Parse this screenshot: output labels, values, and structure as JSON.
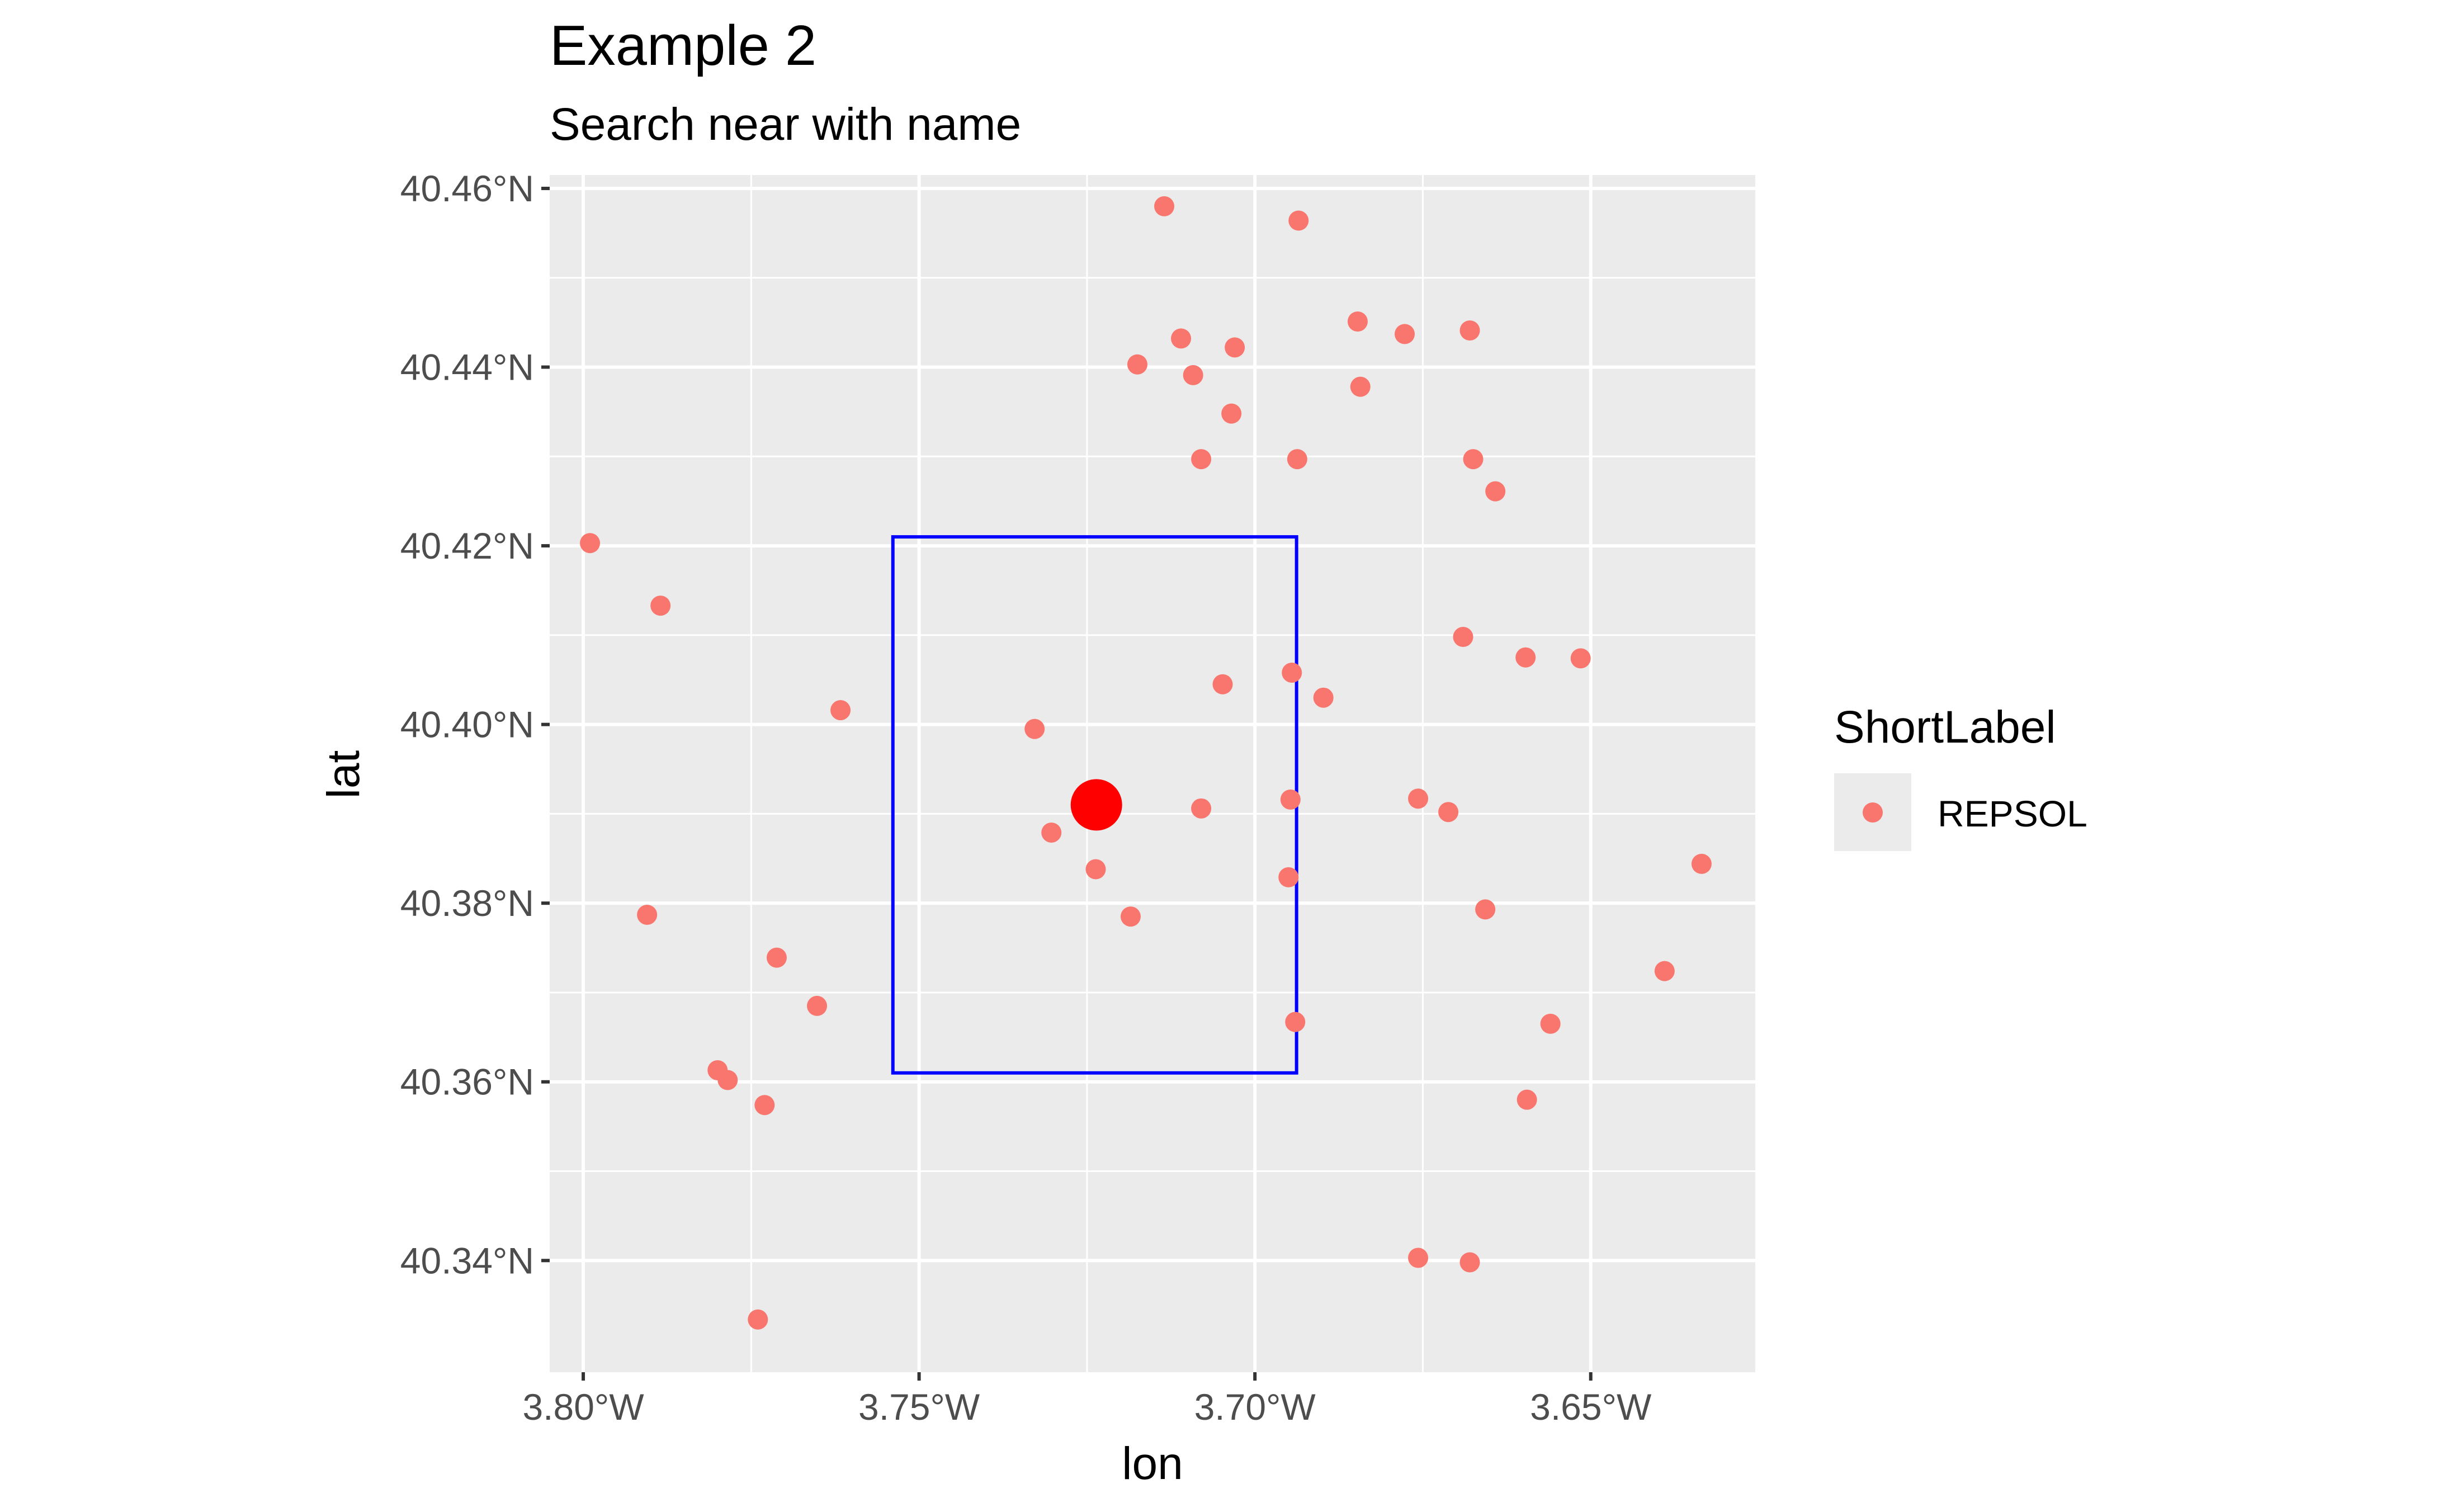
{
  "chart_data": {
    "type": "scatter",
    "title": "Example 2",
    "subtitle": "Search near with name",
    "xlabel": "lon",
    "ylabel": "lat",
    "xlim": [
      -3.805,
      -3.6255
    ],
    "ylim": [
      40.3275,
      40.4615
    ],
    "x_ticks": [
      -3.8,
      -3.75,
      -3.7,
      -3.65
    ],
    "x_tick_labels": [
      "3.80°W",
      "3.75°W",
      "3.70°W",
      "3.65°W"
    ],
    "y_ticks": [
      40.34,
      40.36,
      40.38,
      40.4,
      40.42,
      40.44,
      40.46
    ],
    "y_tick_labels": [
      "40.34°N",
      "40.36°N",
      "40.38°N",
      "40.40°N",
      "40.42°N",
      "40.44°N",
      "40.46°N"
    ],
    "grid": true,
    "legend": {
      "title": "ShortLabel",
      "position": "right",
      "entries": [
        {
          "label": "REPSOL",
          "color": "#F8766D"
        }
      ]
    },
    "series": [
      {
        "name": "REPSOL",
        "color": "#F8766D",
        "points": [
          [
            -3.7135,
            40.458
          ],
          [
            -3.6935,
            40.4564
          ],
          [
            -3.6847,
            40.4451
          ],
          [
            -3.668,
            40.4441
          ],
          [
            -3.6777,
            40.4437
          ],
          [
            -3.711,
            40.4432
          ],
          [
            -3.703,
            40.4422
          ],
          [
            -3.7175,
            40.4403
          ],
          [
            -3.7092,
            40.4391
          ],
          [
            -3.6843,
            40.4378
          ],
          [
            -3.7035,
            40.4348
          ],
          [
            -3.708,
            40.4297
          ],
          [
            -3.6937,
            40.4297
          ],
          [
            -3.6675,
            40.4297
          ],
          [
            -3.6642,
            40.4261
          ],
          [
            -3.799,
            40.4203
          ],
          [
            -3.7885,
            40.4133
          ],
          [
            -3.669,
            40.4098
          ],
          [
            -3.6597,
            40.4075
          ],
          [
            -3.6515,
            40.4074
          ],
          [
            -3.6945,
            40.4058
          ],
          [
            -3.7048,
            40.4045
          ],
          [
            -3.6898,
            40.403
          ],
          [
            -3.7617,
            40.4016
          ],
          [
            -3.7328,
            40.3995
          ],
          [
            -3.6947,
            40.3916
          ],
          [
            -3.6757,
            40.3917
          ],
          [
            -3.6712,
            40.3902
          ],
          [
            -3.708,
            40.3906
          ],
          [
            -3.7303,
            40.3879
          ],
          [
            -3.7237,
            40.3838
          ],
          [
            -3.695,
            40.3829
          ],
          [
            -3.6335,
            40.3844
          ],
          [
            -3.7905,
            40.3787
          ],
          [
            -3.6657,
            40.3793
          ],
          [
            -3.7185,
            40.3785
          ],
          [
            -3.7712,
            40.3739
          ],
          [
            -3.639,
            40.3724
          ],
          [
            -3.7652,
            40.3685
          ],
          [
            -3.694,
            40.3667
          ],
          [
            -3.656,
            40.3665
          ],
          [
            -3.78,
            40.3613
          ],
          [
            -3.7785,
            40.3602
          ],
          [
            -3.773,
            40.3574
          ],
          [
            -3.6595,
            40.358
          ],
          [
            -3.6757,
            40.3403
          ],
          [
            -3.668,
            40.3398
          ],
          [
            -3.774,
            40.3334
          ]
        ]
      }
    ],
    "highlight_point": {
      "lon": -3.7236,
      "lat": 40.391,
      "color": "#FF0000"
    },
    "bbox_rectangle": {
      "lon_min": -3.7539,
      "lon_max": -3.6938,
      "lat_min": 40.361,
      "lat_max": 40.421,
      "color": "#0000FF"
    }
  }
}
